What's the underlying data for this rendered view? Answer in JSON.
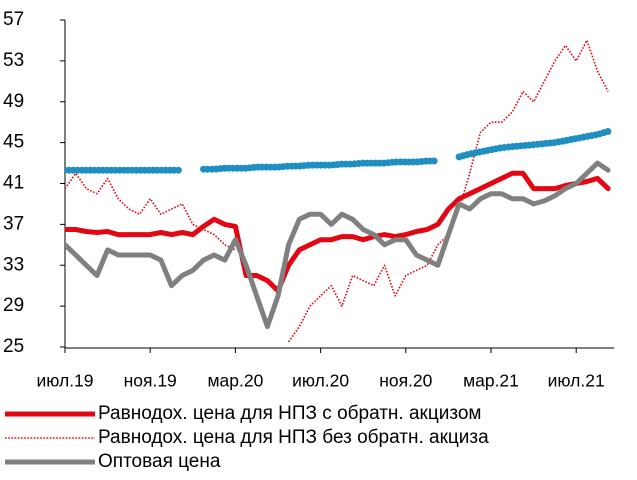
{
  "chart_data": {
    "type": "line",
    "categories": [
      "июл.19",
      null,
      null,
      null,
      null,
      null,
      null,
      null,
      "ноя.19",
      null,
      null,
      null,
      null,
      null,
      null,
      null,
      "мар.20",
      null,
      null,
      null,
      null,
      null,
      null,
      null,
      "июл.20",
      null,
      null,
      null,
      null,
      null,
      null,
      null,
      "ноя.20",
      null,
      null,
      null,
      null,
      null,
      null,
      null,
      "мар.21",
      null,
      null,
      null,
      null,
      null,
      null,
      null,
      "июл.21",
      null,
      null,
      null
    ],
    "ylim": [
      25,
      57
    ],
    "yticks": [
      25,
      29,
      33,
      37,
      41,
      45,
      49,
      53,
      57
    ],
    "grid": false,
    "series": [
      {
        "name": "Равнодох. цена для НПЗ без обратн. акциза",
        "color": "#e30613",
        "style": "dotted",
        "values": [
          40.5,
          42,
          40.5,
          40,
          41.5,
          39.5,
          38.5,
          38,
          39.5,
          38,
          38.5,
          39,
          37,
          36.5,
          36,
          35,
          34.5,
          null,
          null,
          null,
          null,
          25.5,
          27,
          29,
          30,
          31,
          29,
          32,
          31.5,
          31,
          33,
          30,
          32,
          32.5,
          33,
          35,
          36,
          38.5,
          42,
          46,
          47,
          47,
          48,
          50,
          49,
          51,
          53,
          54.5,
          53,
          55,
          52,
          50
        ]
      },
      {
        "name": "Равнодох. цена для НПЗ с обратн. акцизом",
        "color": "#e30613",
        "style": "solid",
        "values": [
          36.5,
          36.5,
          36.3,
          36.2,
          36.3,
          36,
          36,
          36,
          36,
          36.2,
          36,
          36.2,
          36,
          36.8,
          37.5,
          37,
          36.8,
          32,
          32,
          31.5,
          30.5,
          33,
          34.5,
          35,
          35.5,
          35.5,
          35.8,
          35.8,
          35.5,
          35.8,
          36,
          35.8,
          36,
          36.3,
          36.5,
          37,
          38.5,
          39.5,
          40,
          40.5,
          41,
          41.5,
          42,
          42,
          40.5,
          40.5,
          40.5,
          40.8,
          41,
          41.2,
          41.5,
          40.5
        ]
      },
      {
        "name": "Оптовая цена",
        "color": "#808080",
        "style": "solid",
        "values": [
          35,
          34,
          33,
          32,
          34.5,
          34,
          34,
          34,
          34,
          33.5,
          31,
          32,
          32.5,
          33.5,
          34,
          33.5,
          35.5,
          33,
          30,
          27,
          30,
          35,
          37.5,
          38,
          38,
          37,
          38,
          37.5,
          36.5,
          36,
          35,
          35.5,
          35.5,
          34,
          33.5,
          33,
          36,
          39,
          38.5,
          39.5,
          40,
          40,
          39.5,
          39.5,
          39,
          39.3,
          39.8,
          40.5,
          41,
          42,
          43,
          42.3
        ]
      },
      {
        "color": "#1f8fc1",
        "style": "dots",
        "values": [
          42.3,
          42.3,
          42.3,
          42.3,
          42.3,
          42.3,
          42.3,
          42.3,
          42.3,
          42.3,
          42.3,
          42.3,
          null,
          42.4,
          42.4,
          42.5,
          42.5,
          42.5,
          42.6,
          42.6,
          42.6,
          42.7,
          42.7,
          42.8,
          42.8,
          42.8,
          42.9,
          42.9,
          43,
          43,
          43,
          43.1,
          43.1,
          43.1,
          43.2,
          43.2,
          null,
          43.6,
          43.9,
          44.1,
          44.3,
          44.5,
          44.6,
          44.7,
          44.8,
          44.9,
          45,
          45.2,
          45.4,
          45.6,
          45.8,
          46.1
        ]
      }
    ]
  }
}
